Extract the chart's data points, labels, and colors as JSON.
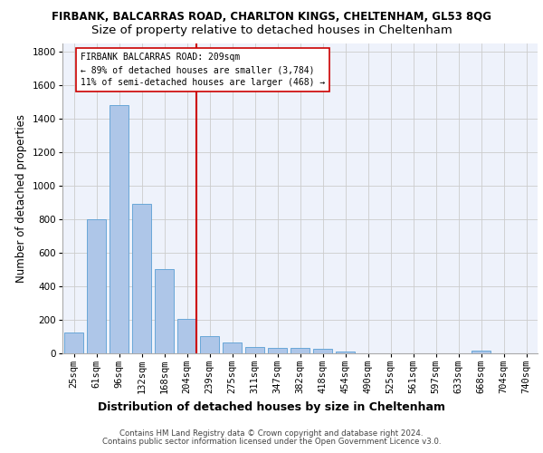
{
  "title1": "FIRBANK, BALCARRAS ROAD, CHARLTON KINGS, CHELTENHAM, GL53 8QG",
  "title2": "Size of property relative to detached houses in Cheltenham",
  "xlabel": "Distribution of detached houses by size in Cheltenham",
  "ylabel": "Number of detached properties",
  "footer1": "Contains HM Land Registry data © Crown copyright and database right 2024.",
  "footer2": "Contains public sector information licensed under the Open Government Licence v3.0.",
  "categories": [
    "25sqm",
    "61sqm",
    "96sqm",
    "132sqm",
    "168sqm",
    "204sqm",
    "239sqm",
    "275sqm",
    "311sqm",
    "347sqm",
    "382sqm",
    "418sqm",
    "454sqm",
    "490sqm",
    "525sqm",
    "561sqm",
    "597sqm",
    "633sqm",
    "668sqm",
    "704sqm",
    "740sqm"
  ],
  "values": [
    125,
    800,
    1480,
    890,
    500,
    205,
    105,
    65,
    40,
    35,
    30,
    25,
    10,
    0,
    0,
    0,
    0,
    0,
    15,
    0,
    0
  ],
  "bar_color": "#aec6e8",
  "bar_edgecolor": "#5a9fd4",
  "vline_x_index": 5,
  "vline_color": "#cc0000",
  "annotation_text": "FIRBANK BALCARRAS ROAD: 209sqm\n← 89% of detached houses are smaller (3,784)\n11% of semi-detached houses are larger (468) →",
  "annotation_box_color": "#cc0000",
  "ylim": [
    0,
    1850
  ],
  "yticks": [
    0,
    200,
    400,
    600,
    800,
    1000,
    1200,
    1400,
    1600,
    1800
  ],
  "grid_color": "#cccccc",
  "bg_color": "#eef2fb",
  "title1_fontsize": 8.5,
  "title2_fontsize": 9.5,
  "xlabel_fontsize": 9,
  "ylabel_fontsize": 8.5,
  "tick_fontsize": 7.5,
  "annotation_fontsize": 7,
  "footer_fontsize": 6.2
}
